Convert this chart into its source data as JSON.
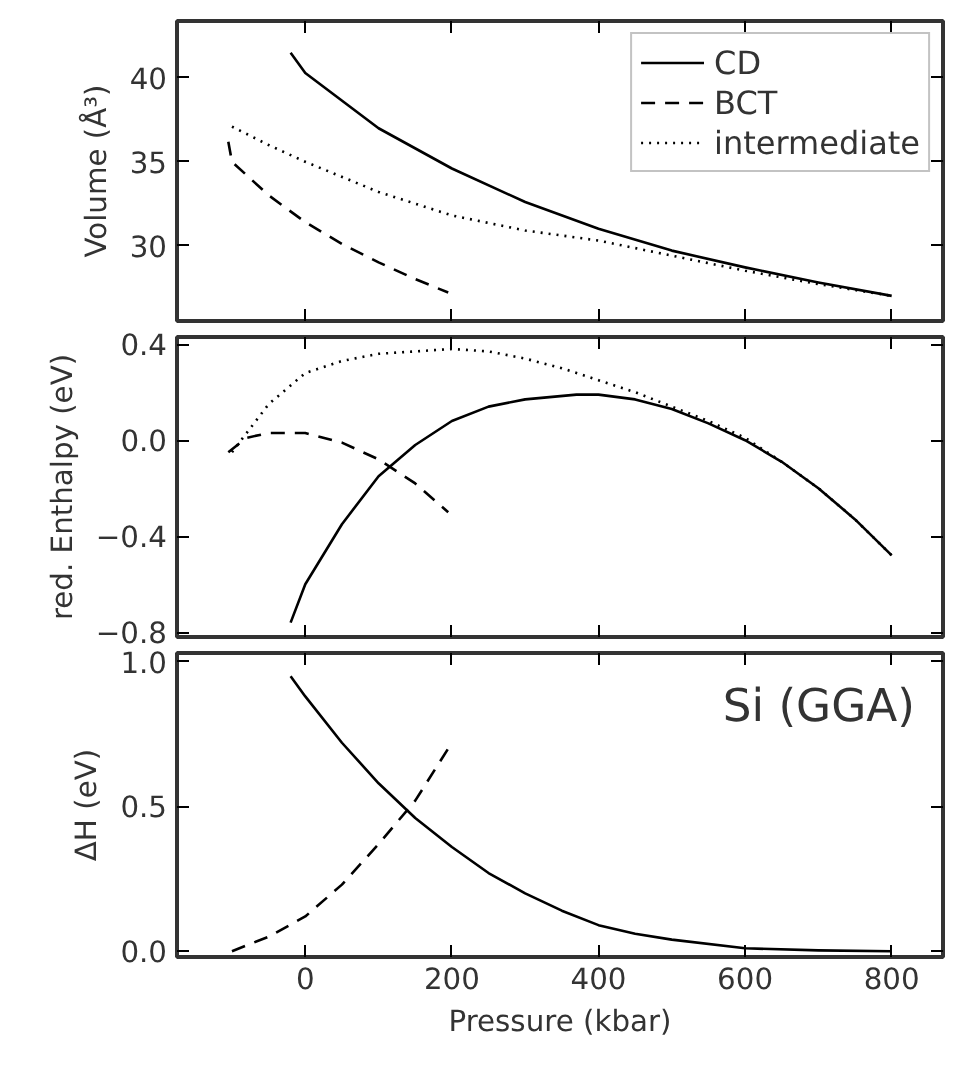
{
  "chart_data": [
    {
      "type": "line",
      "ylabel": "Volume (Å³)",
      "xlim": [
        -175,
        870
      ],
      "xticks": [
        0,
        200,
        400,
        600,
        800
      ],
      "ylim": [
        25.5,
        43.4
      ],
      "yticks": [
        30,
        35,
        40
      ],
      "tick_labels": "y",
      "legend": "top right",
      "grid": false,
      "series": [
        {
          "name": "CD",
          "color": "#000000",
          "line_style": "solid",
          "x": [
            -20,
            0,
            100,
            200,
            300,
            400,
            500,
            600,
            700,
            800
          ],
          "values": [
            41.5,
            40.3,
            37.0,
            34.6,
            32.6,
            31.0,
            29.7,
            28.7,
            27.8,
            27.0
          ]
        },
        {
          "name": "BCT",
          "color": "#000000",
          "line_style": "dashed",
          "x": [
            -105,
            -100,
            -50,
            0,
            50,
            100,
            150,
            195
          ],
          "values": [
            36.2,
            35.0,
            33.0,
            31.4,
            30.1,
            29.0,
            28.0,
            27.2
          ]
        },
        {
          "name": "intermediate",
          "color": "#000000",
          "line_style": "dotted",
          "x": [
            -100,
            -50,
            0,
            100,
            200,
            300,
            400,
            500,
            600,
            700,
            800
          ],
          "values": [
            37.1,
            36.0,
            35.0,
            33.2,
            31.8,
            30.9,
            30.3,
            29.4,
            28.5,
            27.7,
            27.0
          ]
        }
      ]
    },
    {
      "type": "line",
      "ylabel": "red. Enthalpy (eV)",
      "xlim": [
        -175,
        870
      ],
      "xticks": [
        0,
        200,
        400,
        600,
        800
      ],
      "ylim": [
        -0.82,
        0.43
      ],
      "yticks": [
        {
          "value": -0.8,
          "label": "−0.8"
        },
        {
          "value": -0.4,
          "label": "−0.4"
        },
        {
          "value": 0.0,
          "label": "0.0"
        },
        {
          "value": 0.4,
          "label": "0.4"
        }
      ],
      "tick_labels": "y",
      "grid": false,
      "series": [
        {
          "color": "#000000",
          "line_style": "solid",
          "x": [
            -20,
            0,
            50,
            100,
            150,
            200,
            250,
            300,
            370,
            400,
            450,
            500,
            550,
            600,
            650,
            700,
            750,
            800
          ],
          "values": [
            -0.76,
            -0.6,
            -0.35,
            -0.15,
            -0.02,
            0.08,
            0.14,
            0.17,
            0.19,
            0.19,
            0.17,
            0.13,
            0.07,
            0.0,
            -0.09,
            -0.2,
            -0.33,
            -0.48
          ]
        },
        {
          "color": "#000000",
          "line_style": "dashed",
          "x": [
            -105,
            -80,
            -50,
            0,
            50,
            100,
            150,
            195
          ],
          "values": [
            -0.05,
            0.01,
            0.03,
            0.03,
            -0.01,
            -0.08,
            -0.18,
            -0.3
          ]
        },
        {
          "color": "#000000",
          "line_style": "dotted",
          "x": [
            -100,
            -50,
            0,
            50,
            100,
            150,
            200,
            250,
            300,
            350,
            400,
            450,
            500,
            550,
            600,
            650,
            700,
            750,
            800
          ],
          "values": [
            -0.05,
            0.15,
            0.28,
            0.33,
            0.36,
            0.37,
            0.38,
            0.37,
            0.34,
            0.3,
            0.25,
            0.2,
            0.14,
            0.08,
            0.01,
            -0.09,
            -0.2,
            -0.33,
            -0.48
          ]
        }
      ]
    },
    {
      "type": "line",
      "xlabel": "Pressure (kbar)",
      "ylabel": "ΔH (eV)",
      "xlim": [
        -175,
        870
      ],
      "xticks": [
        0,
        200,
        400,
        600,
        800
      ],
      "ylim": [
        -0.02,
        1.03
      ],
      "yticks": [
        {
          "value": 0.0,
          "label": "0.0"
        },
        0.5,
        {
          "value": 1.0,
          "label": "1.0"
        }
      ],
      "grid": false,
      "annotations": [
        "Si (GGA)"
      ],
      "series": [
        {
          "color": "#000000",
          "line_style": "solid",
          "x": [
            -20,
            0,
            50,
            100,
            150,
            200,
            250,
            300,
            350,
            400,
            450,
            500,
            600,
            700,
            800
          ],
          "values": [
            0.95,
            0.88,
            0.72,
            0.58,
            0.46,
            0.36,
            0.27,
            0.2,
            0.14,
            0.09,
            0.06,
            0.04,
            0.01,
            0.003,
            0.0
          ]
        },
        {
          "color": "#000000",
          "line_style": "dashed",
          "x": [
            -100,
            -50,
            0,
            50,
            100,
            150,
            195
          ],
          "values": [
            0.0,
            0.05,
            0.12,
            0.23,
            0.37,
            0.52,
            0.7
          ]
        }
      ]
    }
  ]
}
